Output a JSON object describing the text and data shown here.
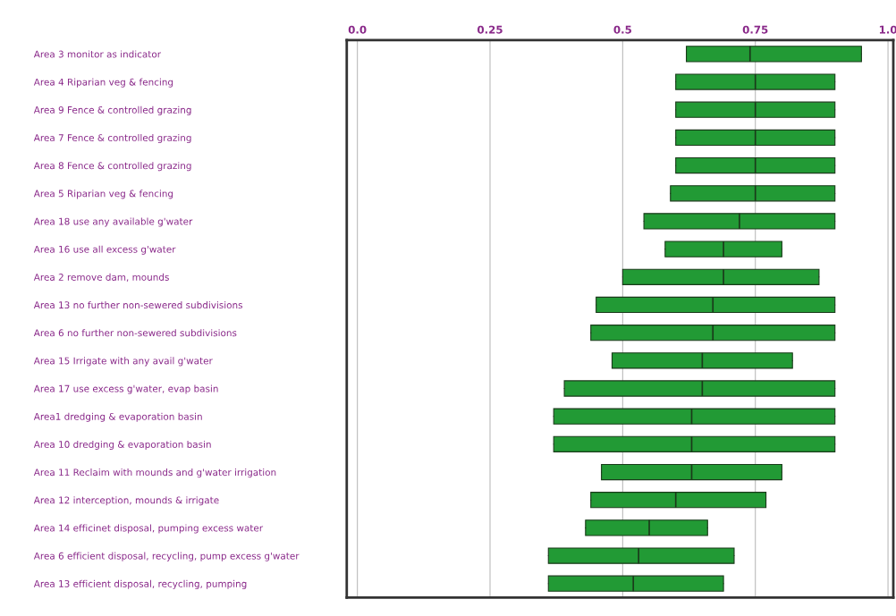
{
  "chart_data": {
    "type": "box",
    "orientation": "horizontal",
    "color": "#229a35",
    "grid": "x",
    "categories": [
      "Area 3 monitor as indicator",
      "Area 4 Riparian veg & fencing",
      "Area 9 Fence & controlled grazing",
      "Area 7 Fence & controlled grazing",
      "Area 8 Fence & controlled grazing",
      "Area 5 Riparian veg & fencing",
      "Area 18 use any available g'water",
      "Area 16 use all excess g'water",
      "Area 2 remove dam, mounds",
      "Area 13 no further non-sewered subdivisions",
      "Area 6 no further non-sewered subdivisions",
      "Area 15 Irrigate with any avail g'water",
      "Area 17 use excess g'water, evap basin",
      "Area1 dredging & evaporation basin",
      "Area 10 dredging & evaporation basin",
      "Area 11 Reclaim with mounds and g'water irrigation",
      "Area 12 interception, mounds & irrigate",
      "Area 14 efficinet disposal, pumping excess water",
      "Area 6 efficient disposal, recycling, pump excess g'water",
      "Area 13 efficient disposal, recycling, pumping"
    ],
    "boxes": [
      {
        "low": 0.62,
        "q1": 0.62,
        "median": 0.74,
        "q3": 0.95,
        "high": 0.95
      },
      {
        "low": 0.6,
        "q1": 0.6,
        "median": 0.75,
        "q3": 0.9,
        "high": 0.9
      },
      {
        "low": 0.6,
        "q1": 0.6,
        "median": 0.75,
        "q3": 0.9,
        "high": 0.9
      },
      {
        "low": 0.6,
        "q1": 0.6,
        "median": 0.75,
        "q3": 0.9,
        "high": 0.9
      },
      {
        "low": 0.6,
        "q1": 0.6,
        "median": 0.75,
        "q3": 0.9,
        "high": 0.9
      },
      {
        "low": 0.59,
        "q1": 0.59,
        "median": 0.75,
        "q3": 0.9,
        "high": 0.9
      },
      {
        "low": 0.54,
        "q1": 0.54,
        "median": 0.72,
        "q3": 0.9,
        "high": 0.9
      },
      {
        "low": 0.58,
        "q1": 0.58,
        "median": 0.69,
        "q3": 0.8,
        "high": 0.8
      },
      {
        "low": 0.5,
        "q1": 0.5,
        "median": 0.69,
        "q3": 0.87,
        "high": 0.87
      },
      {
        "low": 0.45,
        "q1": 0.45,
        "median": 0.67,
        "q3": 0.9,
        "high": 0.9
      },
      {
        "low": 0.44,
        "q1": 0.44,
        "median": 0.67,
        "q3": 0.9,
        "high": 0.9
      },
      {
        "low": 0.48,
        "q1": 0.48,
        "median": 0.65,
        "q3": 0.82,
        "high": 0.82
      },
      {
        "low": 0.39,
        "q1": 0.39,
        "median": 0.65,
        "q3": 0.9,
        "high": 0.9
      },
      {
        "low": 0.37,
        "q1": 0.37,
        "median": 0.63,
        "q3": 0.9,
        "high": 0.9
      },
      {
        "low": 0.37,
        "q1": 0.37,
        "median": 0.63,
        "q3": 0.9,
        "high": 0.9
      },
      {
        "low": 0.46,
        "q1": 0.46,
        "median": 0.63,
        "q3": 0.8,
        "high": 0.8
      },
      {
        "low": 0.44,
        "q1": 0.44,
        "median": 0.6,
        "q3": 0.77,
        "high": 0.77
      },
      {
        "low": 0.43,
        "q1": 0.43,
        "median": 0.55,
        "q3": 0.66,
        "high": 0.66
      },
      {
        "low": 0.36,
        "q1": 0.36,
        "median": 0.53,
        "q3": 0.71,
        "high": 0.71
      },
      {
        "low": 0.36,
        "q1": 0.36,
        "median": 0.52,
        "q3": 0.69,
        "high": 0.69
      }
    ],
    "xlim": [
      -0.02,
      1.01
    ],
    "xticks": [
      {
        "value": 0,
        "label": "0.0"
      },
      0.25,
      0.5,
      0.75,
      {
        "value": 1,
        "label": "1.0"
      }
    ]
  }
}
